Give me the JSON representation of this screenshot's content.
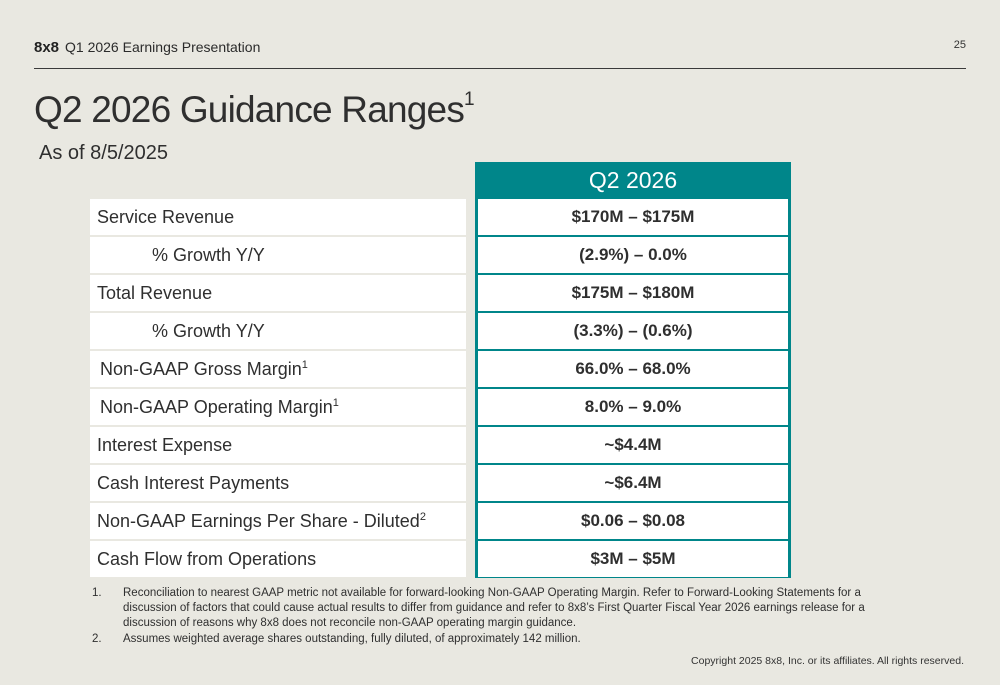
{
  "header": {
    "logo": "8x8",
    "deck_title": "Q1 2026 Earnings Presentation",
    "page_number": "25"
  },
  "slide": {
    "title": "Q2 2026 Guidance Ranges",
    "title_sup": "1",
    "subtitle": "As of 8/5/2025"
  },
  "table": {
    "column_header": "Q2 2026",
    "rows": [
      {
        "label": "Service Revenue",
        "sup": "",
        "value": "$170M – $175M"
      },
      {
        "label": "% Growth Y/Y",
        "sup": "",
        "value": "(2.9%) – 0.0%"
      },
      {
        "label": "Total Revenue",
        "sup": "",
        "value": "$175M – $180M"
      },
      {
        "label": "% Growth Y/Y",
        "sup": "",
        "value": "(3.3%) – (0.6%)"
      },
      {
        "label": "Non-GAAP Gross Margin",
        "sup": "1",
        "value": "66.0% – 68.0%"
      },
      {
        "label": "Non-GAAP Operating Margin",
        "sup": "1",
        "value": "8.0% – 9.0%"
      },
      {
        "label": "Interest Expense",
        "sup": "",
        "value": "~$4.4M"
      },
      {
        "label": "Cash Interest Payments",
        "sup": "",
        "value": "~$6.4M"
      },
      {
        "label": "Non-GAAP Earnings Per Share - Diluted",
        "sup": "2",
        "value": "$0.06 – $0.08"
      },
      {
        "label": "Cash Flow from Operations",
        "sup": "",
        "value": "$3M – $5M"
      }
    ]
  },
  "footnotes": [
    {
      "num": "1.",
      "text": "Reconciliation to nearest GAAP metric not available for forward-looking Non-GAAP Operating Margin. Refer to Forward-Looking Statements for a discussion of factors that could cause actual results to differ from guidance and refer to 8x8’s First Quarter Fiscal Year 2026 earnings release for a discussion of reasons why 8x8 does not reconcile non-GAAP operating margin guidance."
    },
    {
      "num": "2.",
      "text": "Assumes weighted average shares outstanding, fully diluted, of approximately 142 million."
    }
  ],
  "copyright": "Copyright 2025 8x8, Inc. or its affiliates. All rights reserved."
}
